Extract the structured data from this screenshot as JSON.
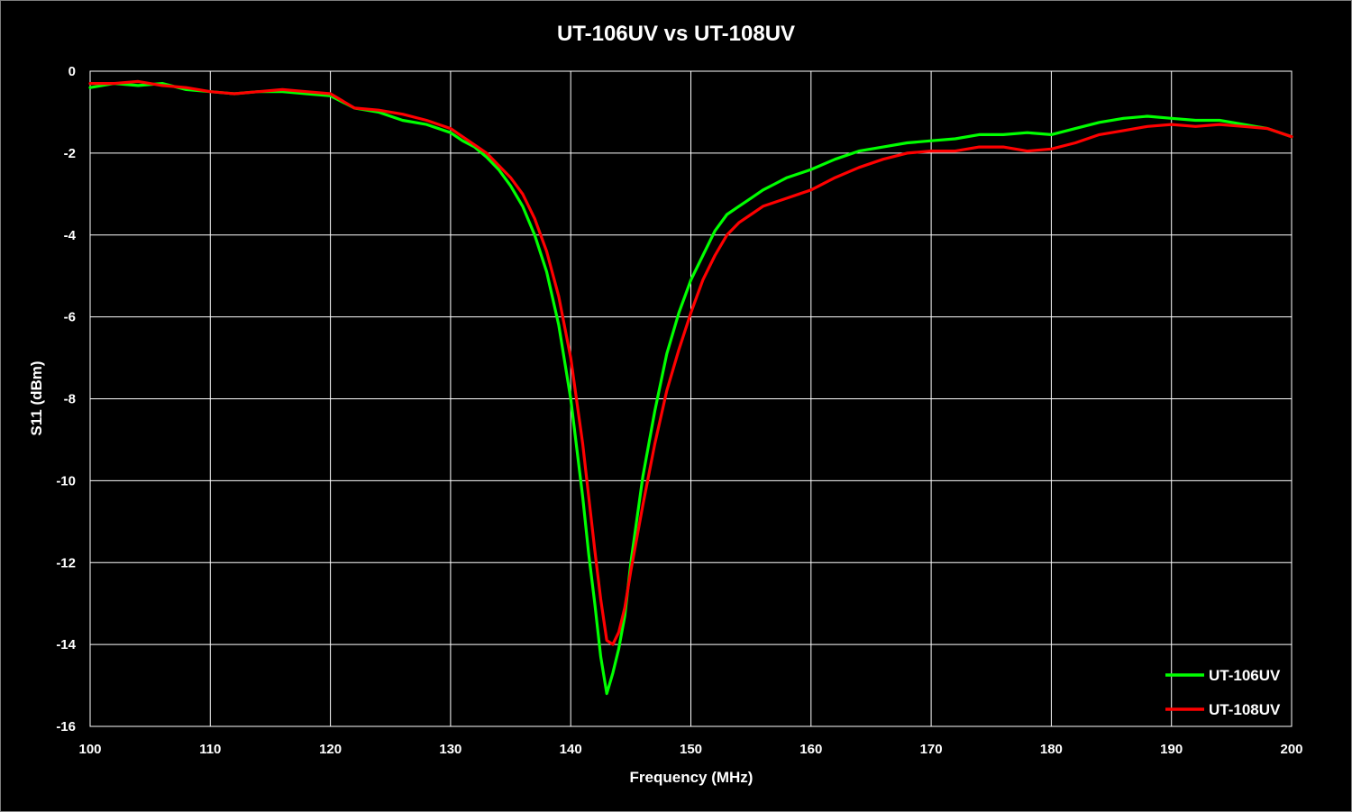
{
  "chart_data": {
    "type": "line",
    "title": "UT-106UV vs UT-108UV",
    "xlabel": "Frequency (MHz)",
    "ylabel": "S11 (dBm)",
    "xlim": [
      100,
      200
    ],
    "ylim": [
      -16,
      0
    ],
    "x_ticks": [
      100,
      110,
      120,
      130,
      140,
      150,
      160,
      170,
      180,
      190,
      200
    ],
    "y_ticks": [
      0,
      -2,
      -4,
      -6,
      -8,
      -10,
      -12,
      -14,
      -16
    ],
    "grid": true,
    "legend_position": "bottom-right",
    "background": "#000000",
    "series": [
      {
        "name": "UT-106UV",
        "color": "#00ff00",
        "x": [
          100,
          102,
          104,
          106,
          108,
          110,
          112,
          114,
          116,
          118,
          120,
          122,
          124,
          126,
          128,
          130,
          131,
          132,
          133,
          134,
          135,
          136,
          137,
          138,
          139,
          140,
          141,
          141.5,
          142,
          142.5,
          143,
          143.5,
          144,
          144.5,
          145,
          146,
          147,
          148,
          149,
          150,
          151,
          152,
          153,
          154,
          155,
          156,
          157,
          158,
          159,
          160,
          162,
          164,
          166,
          168,
          170,
          172,
          174,
          176,
          178,
          180,
          182,
          184,
          186,
          188,
          190,
          192,
          194,
          196,
          198,
          200
        ],
        "values": [
          -0.4,
          -0.3,
          -0.35,
          -0.3,
          -0.45,
          -0.5,
          -0.55,
          -0.5,
          -0.5,
          -0.55,
          -0.6,
          -0.9,
          -1.0,
          -1.2,
          -1.3,
          -1.5,
          -1.7,
          -1.85,
          -2.1,
          -2.4,
          -2.8,
          -3.3,
          -4.0,
          -4.9,
          -6.2,
          -8.0,
          -10.4,
          -11.8,
          -13.0,
          -14.3,
          -15.2,
          -14.7,
          -14.1,
          -13.3,
          -12.0,
          -9.9,
          -8.3,
          -6.9,
          -5.9,
          -5.1,
          -4.5,
          -3.9,
          -3.5,
          -3.3,
          -3.1,
          -2.9,
          -2.75,
          -2.6,
          -2.5,
          -2.4,
          -2.15,
          -1.95,
          -1.85,
          -1.75,
          -1.7,
          -1.65,
          -1.55,
          -1.55,
          -1.5,
          -1.55,
          -1.4,
          -1.25,
          -1.15,
          -1.1,
          -1.15,
          -1.2,
          -1.2,
          -1.3,
          -1.4,
          -1.6
        ]
      },
      {
        "name": "UT-108UV",
        "color": "#ff0000",
        "x": [
          100,
          102,
          104,
          106,
          108,
          110,
          112,
          114,
          116,
          118,
          120,
          122,
          124,
          126,
          128,
          130,
          131,
          132,
          133,
          134,
          135,
          136,
          137,
          138,
          139,
          140,
          141,
          141.5,
          142,
          142.5,
          143,
          143.5,
          144,
          144.5,
          145,
          146,
          147,
          148,
          149,
          150,
          151,
          152,
          153,
          154,
          155,
          156,
          157,
          158,
          159,
          160,
          162,
          164,
          166,
          168,
          170,
          172,
          174,
          176,
          178,
          180,
          182,
          184,
          186,
          188,
          190,
          192,
          194,
          196,
          198,
          200
        ],
        "values": [
          -0.3,
          -0.3,
          -0.25,
          -0.35,
          -0.4,
          -0.5,
          -0.55,
          -0.5,
          -0.45,
          -0.5,
          -0.55,
          -0.9,
          -0.95,
          -1.05,
          -1.2,
          -1.4,
          -1.6,
          -1.8,
          -2.0,
          -2.3,
          -2.6,
          -3.0,
          -3.6,
          -4.4,
          -5.5,
          -7.0,
          -9.1,
          -10.4,
          -11.7,
          -12.9,
          -13.9,
          -14.0,
          -13.7,
          -13.1,
          -12.2,
          -10.6,
          -9.1,
          -7.8,
          -6.8,
          -5.9,
          -5.1,
          -4.5,
          -4.0,
          -3.7,
          -3.5,
          -3.3,
          -3.2,
          -3.1,
          -3.0,
          -2.9,
          -2.6,
          -2.35,
          -2.15,
          -2.0,
          -1.95,
          -1.95,
          -1.85,
          -1.85,
          -1.95,
          -1.9,
          -1.75,
          -1.55,
          -1.45,
          -1.35,
          -1.3,
          -1.35,
          -1.3,
          -1.35,
          -1.4,
          -1.6
        ]
      }
    ]
  }
}
